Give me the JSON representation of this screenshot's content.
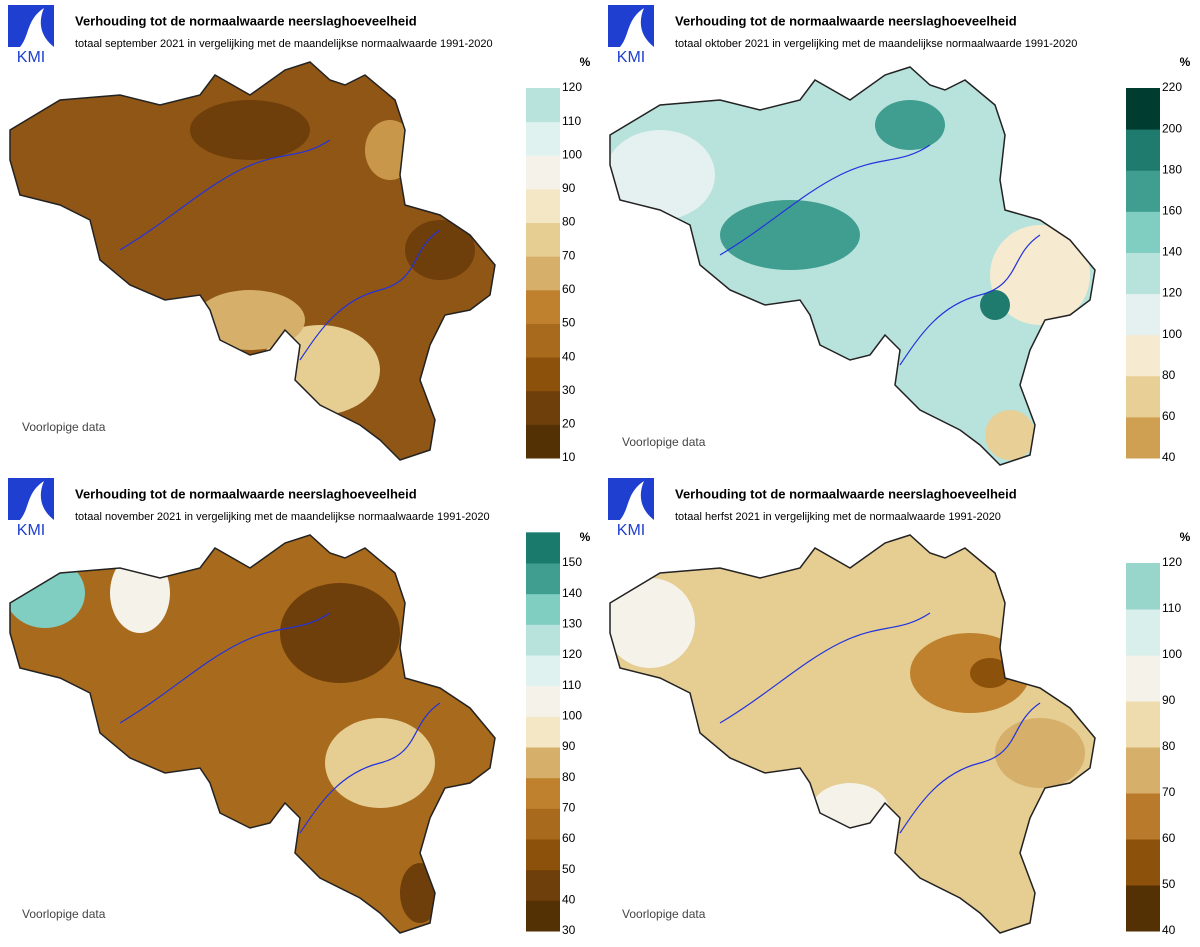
{
  "panels": [
    {
      "logo": "KMI",
      "title": "Verhouding tot de normaalwaarde neerslaghoeveelheid",
      "subtitle": "totaal september 2021 in vergelijking met de maandelijkse normaalwaarde 1991-2020",
      "unit": "%",
      "note": "Voorlopige data",
      "legend": {
        "ticks": [
          10,
          20,
          30,
          40,
          50,
          60,
          70,
          80,
          90,
          100,
          110,
          120
        ],
        "colors": [
          "#543005",
          "#6e3e0b",
          "#8c510a",
          "#a86a1c",
          "#bf812d",
          "#d6b06a",
          "#e6cd92",
          "#f4e7c6",
          "#f5f2ea",
          "#e0f2ef",
          "#b8e3dc"
        ]
      }
    },
    {
      "logo": "KMI",
      "title": "Verhouding tot de normaalwaarde neerslaghoeveelheid",
      "subtitle": "totaal oktober 2021 in vergelijking met de maandelijkse normaalwaarde 1991-2020",
      "unit": "%",
      "note": "Voorlopige data",
      "legend": {
        "ticks": [
          40,
          60,
          80,
          100,
          120,
          140,
          160,
          180,
          200,
          220
        ],
        "colors": [
          "#cfa052",
          "#e8cf95",
          "#f6ead0",
          "#e4f1f0",
          "#b8e3dc",
          "#80cdc1",
          "#3f9e8f",
          "#1f7b6d",
          "#003c30"
        ]
      }
    },
    {
      "logo": "KMI",
      "title": "Verhouding tot de normaalwaarde neerslaghoeveelheid",
      "subtitle": "totaal november 2021 in vergelijking met de maandelijkse normaalwaarde 1991-2020",
      "unit": "%",
      "note": "Voorlopige data",
      "legend": {
        "ticks": [
          30,
          40,
          50,
          60,
          70,
          80,
          90,
          100,
          110,
          120,
          130,
          140,
          150
        ],
        "colors": [
          "#543005",
          "#6e3e0b",
          "#8c510a",
          "#a86a1c",
          "#bf812d",
          "#d6b06a",
          "#f4e7c6",
          "#f5f2ea",
          "#e0f2ef",
          "#b8e3dc",
          "#80cdc1",
          "#3f9e8f",
          "#1a7a6c"
        ]
      }
    },
    {
      "logo": "KMI",
      "title": "Verhouding tot de normaalwaarde neerslaghoeveelheid",
      "subtitle": "totaal herfst 2021 in vergelijking met de normaalwaarde 1991-2020",
      "unit": "%",
      "note": "Voorlopige data",
      "legend": {
        "ticks": [
          40,
          50,
          60,
          70,
          80,
          90,
          100,
          110,
          120
        ],
        "colors": [
          "#543005",
          "#8c510a",
          "#b97a2b",
          "#d6b06a",
          "#efdcae",
          "#f5f2ea",
          "#d8efeb",
          "#98d6cb"
        ]
      }
    }
  ]
}
